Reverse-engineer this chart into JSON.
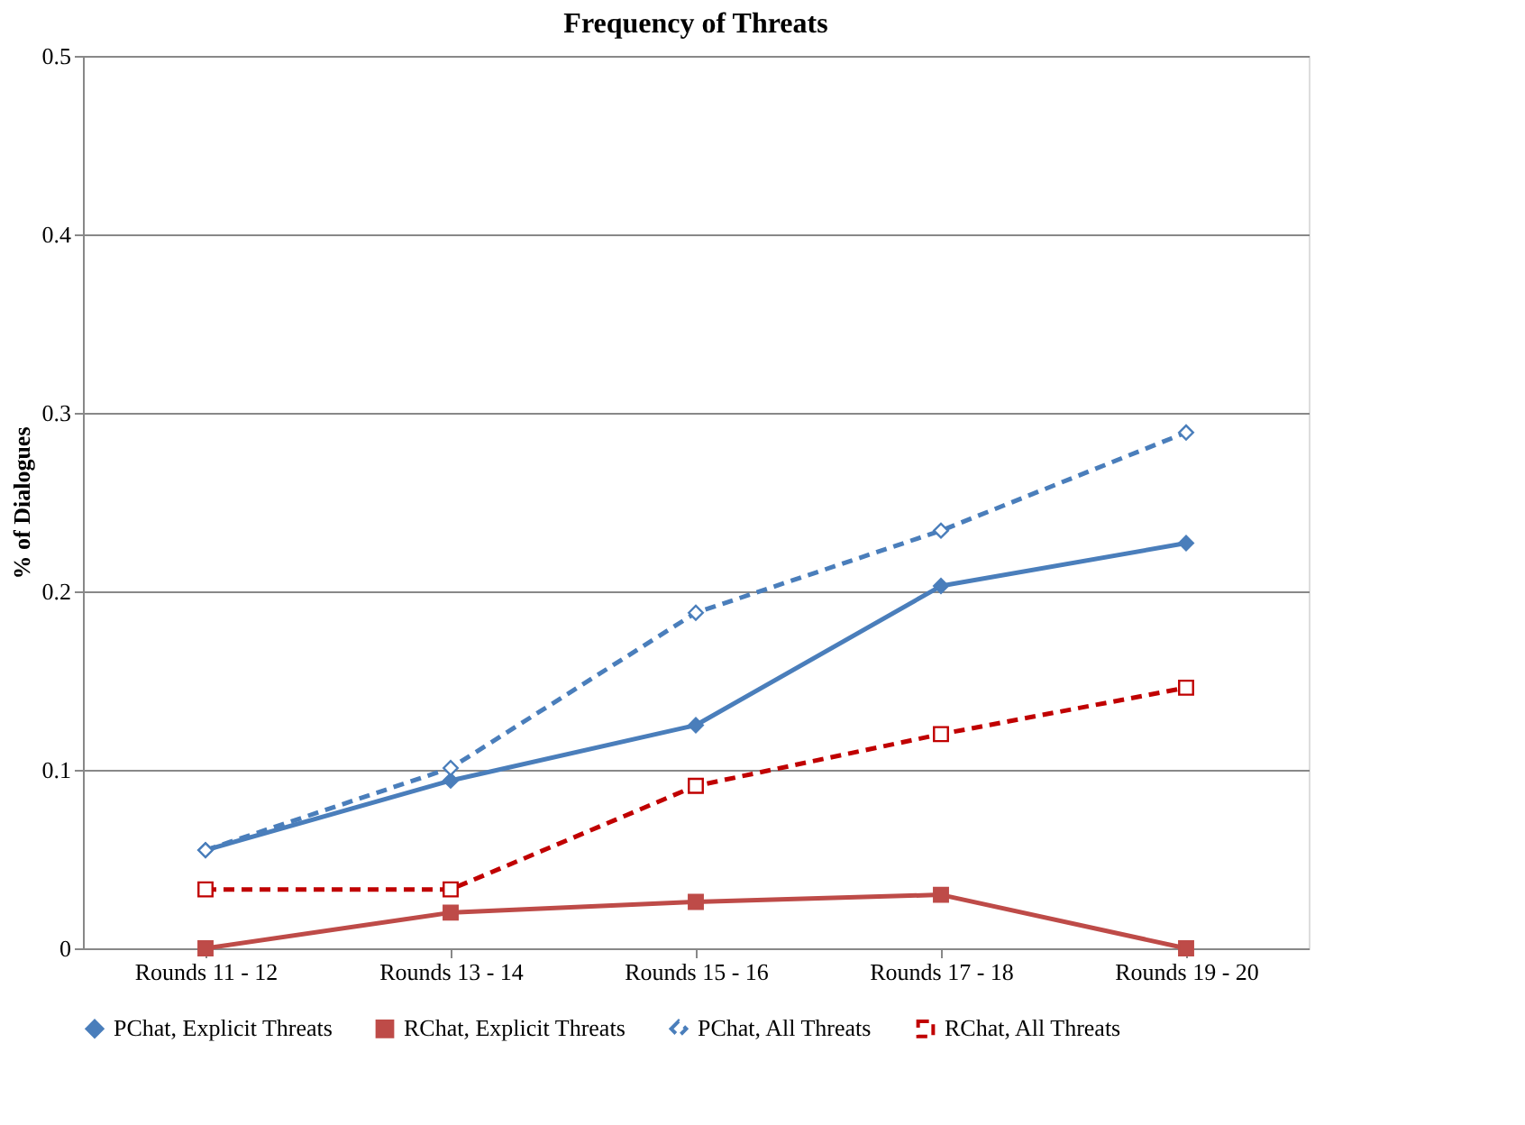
{
  "chart_data": {
    "type": "line",
    "title": "Frequency of Threats",
    "ylabel": "% of Dialogues",
    "categories": [
      "Rounds 11 - 12",
      "Rounds 13 - 14",
      "Rounds 15 - 16",
      "Rounds 17 - 18",
      "Rounds 19 - 20"
    ],
    "series": [
      {
        "name": "PChat, Explicit Threats",
        "color": "#4a7ebb",
        "marker": "diamond",
        "line_style": "solid",
        "values": [
          0.055,
          0.094,
          0.125,
          0.203,
          0.227
        ]
      },
      {
        "name": "RChat, Explicit Threats",
        "color": "#be4b48",
        "marker": "square",
        "line_style": "solid",
        "values": [
          0,
          0.02,
          0.026,
          0.03,
          0
        ]
      },
      {
        "name": "PChat, All Threats",
        "color": "#4a7ebb",
        "marker": "diamond",
        "line_style": "dashed",
        "values": [
          0.055,
          0.101,
          0.188,
          0.234,
          0.289
        ]
      },
      {
        "name": "RChat, All Threats",
        "color": "#c00000",
        "marker": "square",
        "line_style": "dashed",
        "values": [
          0.033,
          0.033,
          0.091,
          0.12,
          0.146
        ]
      }
    ],
    "ylim": [
      0,
      0.5
    ],
    "yticks": [
      0,
      0.1,
      0.2,
      0.3,
      0.4,
      0.5
    ],
    "grid": "y",
    "legend": "bottom"
  }
}
